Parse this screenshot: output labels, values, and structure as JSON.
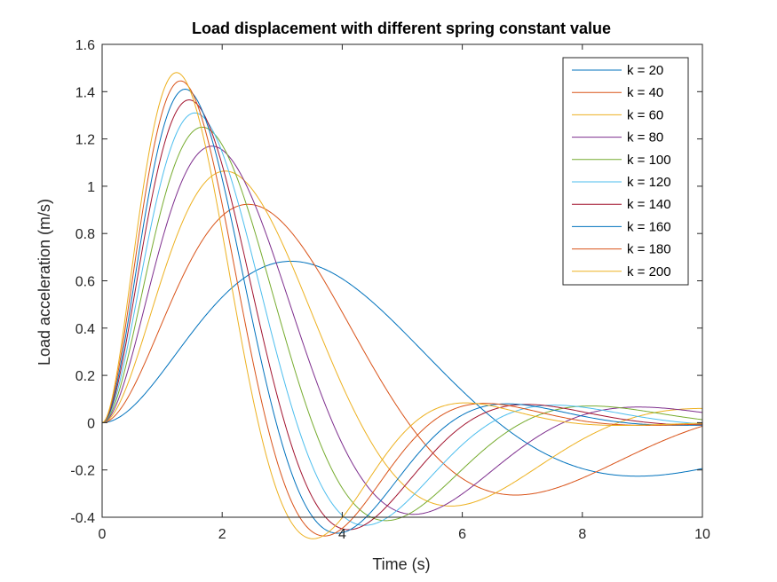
{
  "chart_data": {
    "type": "line",
    "title": "Load displacement with different spring constant value",
    "xlabel": "Time (s)",
    "ylabel": "Load acceleration (m/s)",
    "xlim": [
      0,
      10
    ],
    "ylim": [
      -0.4,
      1.6
    ],
    "xticks": [
      0,
      2,
      4,
      6,
      8,
      10
    ],
    "xtick_labels": [
      "0",
      "2",
      "4",
      "6",
      "8",
      "10"
    ],
    "yticks": [
      -0.4,
      -0.2,
      0,
      0.2,
      0.4,
      0.6,
      0.8,
      1,
      1.2,
      1.4,
      1.6
    ],
    "ytick_labels": [
      "-0.4",
      "-0.2",
      "0",
      "0.2",
      "0.4",
      "0.6",
      "0.8",
      "1",
      "1.2",
      "1.4",
      "1.6"
    ],
    "grid": false,
    "legend_position": "top-right",
    "series": [
      {
        "name": "k = 20",
        "color": "#0072BD",
        "first_peak": {
          "x": 3.3,
          "y": 0.68
        }
      },
      {
        "name": "k = 40",
        "color": "#D95319",
        "first_peak": {
          "x": 2.55,
          "y": 0.92
        }
      },
      {
        "name": "k = 60",
        "color": "#EDB120",
        "first_peak": {
          "x": 2.15,
          "y": 1.06
        }
      },
      {
        "name": "k = 80",
        "color": "#7E2F8E",
        "first_peak": {
          "x": 1.92,
          "y": 1.165
        }
      },
      {
        "name": "k = 100",
        "color": "#77AC30",
        "first_peak": {
          "x": 1.75,
          "y": 1.245
        }
      },
      {
        "name": "k = 120",
        "color": "#4DBEEE",
        "first_peak": {
          "x": 1.62,
          "y": 1.305
        }
      },
      {
        "name": "k = 140",
        "color": "#A2142F",
        "first_peak": {
          "x": 1.52,
          "y": 1.36
        }
      },
      {
        "name": "k = 160",
        "color": "#0072BD",
        "first_peak": {
          "x": 1.45,
          "y": 1.405
        }
      },
      {
        "name": "k = 180",
        "color": "#D95319",
        "first_peak": {
          "x": 1.37,
          "y": 1.44
        }
      },
      {
        "name": "k = 200",
        "color": "#EDB120",
        "first_peak": {
          "x": 1.3,
          "y": 1.475
        }
      }
    ]
  }
}
